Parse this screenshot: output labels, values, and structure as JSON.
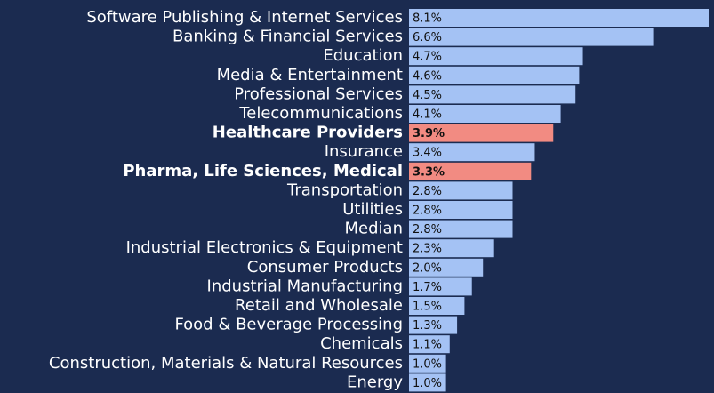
{
  "chart_data": {
    "type": "barh",
    "categories": [
      "Software Publishing & Internet Services",
      "Banking & Financial Services",
      "Education",
      "Media & Entertainment",
      "Professional Services",
      "Telecommunications",
      "Healthcare Providers",
      "Insurance",
      "Pharma, Life Sciences, Medical",
      "Transportation",
      "Utilities",
      "Median",
      "Industrial Electronics & Equipment",
      "Consumer Products",
      "Industrial Manufacturing",
      "Retail and Wholesale",
      "Food & Beverage Processing",
      "Chemicals",
      "Construction, Materials & Natural Resources",
      "Energy"
    ],
    "values": [
      8.1,
      6.6,
      4.7,
      4.6,
      4.5,
      4.1,
      3.9,
      3.4,
      3.3,
      2.8,
      2.8,
      2.8,
      2.3,
      2.0,
      1.7,
      1.5,
      1.3,
      1.1,
      1.0,
      1.0
    ],
    "value_labels": [
      "8.1%",
      "6.6%",
      "4.7%",
      "4.6%",
      "4.5%",
      "4.1%",
      "3.9%",
      "3.4%",
      "3.3%",
      "2.8%",
      "2.8%",
      "2.8%",
      "2.3%",
      "2.0%",
      "1.7%",
      "1.5%",
      "1.3%",
      "1.1%",
      "1.0%",
      "1.0%"
    ],
    "color": "#a4c2f4",
    "colors": [
      "#a4c2f4",
      "#a4c2f4",
      "#a4c2f4",
      "#a4c2f4",
      "#a4c2f4",
      "#a4c2f4",
      "#f28b82",
      "#a4c2f4",
      "#f28b82",
      "#a4c2f4",
      "#a4c2f4",
      "#a4c2f4",
      "#a4c2f4",
      "#a4c2f4",
      "#a4c2f4",
      "#a4c2f4",
      "#a4c2f4",
      "#a4c2f4",
      "#a4c2f4",
      "#a4c2f4"
    ],
    "xlim": [
      0,
      8.1
    ]
  }
}
